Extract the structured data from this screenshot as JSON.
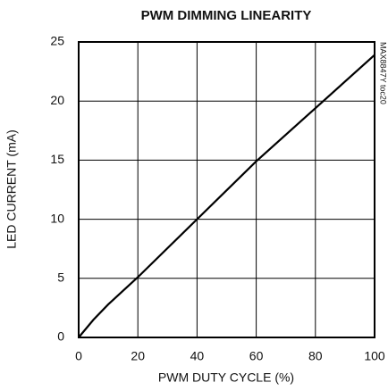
{
  "chart_data": {
    "type": "line",
    "title": "PWM DIMMING LINEARITY",
    "annotation": "MAX8847Y toc20",
    "x_label": "PWM DUTY CYCLE (%)",
    "y_label": "LED CURRENT (mA)",
    "x": [
      0,
      5,
      10,
      20,
      40,
      60,
      80,
      100
    ],
    "series": [
      {
        "name": "LED current",
        "color": "#000000",
        "values": [
          0,
          1.5,
          2.8,
          5.1,
          10,
          14.9,
          19.4,
          23.9
        ]
      }
    ],
    "xlim": [
      0,
      100
    ],
    "xticks": [
      0,
      20,
      40,
      60,
      80,
      100
    ],
    "ylim": [
      0,
      25
    ],
    "yticks": [
      0,
      5,
      10,
      15,
      20,
      25
    ],
    "grid": true
  }
}
